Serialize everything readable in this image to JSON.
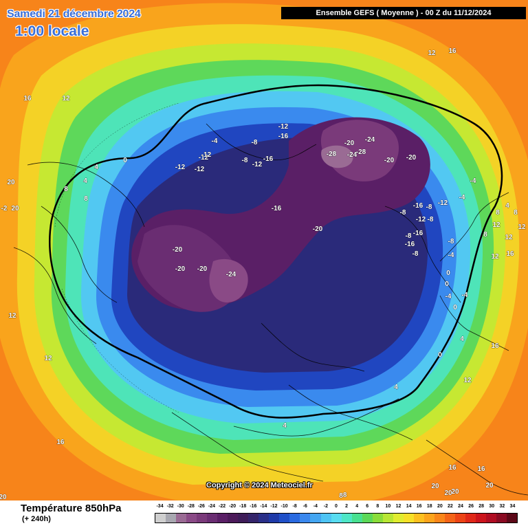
{
  "header": {
    "date_title": "Samedi 21 décembre 2024",
    "time_title": "1:00 locale",
    "run_banner": "Ensemble GEFS  ( Moyenne )  - 00 Z du 11/12/2024"
  },
  "footer": {
    "parameter": "Température 850hPa",
    "forecast_step": "(+ 240h)",
    "copyright": "Copyright © 2024 Meteociel.fr"
  },
  "legend": {
    "ticks": [
      "-34",
      "-32",
      "-30",
      "-28",
      "-26",
      "-24",
      "-22",
      "-20",
      "-18",
      "-16",
      "-14",
      "-12",
      "-10",
      "-8",
      "-6",
      "-4",
      "-2",
      "0",
      "2",
      "4",
      "6",
      "8",
      "10",
      "12",
      "14",
      "16",
      "18",
      "20",
      "22",
      "24",
      "26",
      "28",
      "30",
      "32",
      "34"
    ],
    "colors": [
      "#cfcfcf",
      "#a8a8b0",
      "#9a6b94",
      "#8a4a86",
      "#7a3a7a",
      "#6a2d72",
      "#5a1f66",
      "#4c1a5a",
      "#3e1c58",
      "#34246a",
      "#2a2f88",
      "#1f3aa8",
      "#2050c8",
      "#2a6ae0",
      "#3a88ee",
      "#44a6f2",
      "#4ec4f4",
      "#58dcf0",
      "#4ee6c6",
      "#48e090",
      "#5cd858",
      "#8adc3a",
      "#b8e634",
      "#e0ec30",
      "#f6e028",
      "#fcc020",
      "#fca41c",
      "#fa861a",
      "#f46418",
      "#ec4416",
      "#e02818",
      "#cc141c",
      "#b00c22",
      "#8a0a22",
      "#5c0818"
    ]
  },
  "map": {
    "colors": {
      "background": "#fa8a1c",
      "land_lines": "#000000",
      "zero_isotherm": "#000000"
    },
    "isotherm_labels": [
      "16",
      "12",
      "12",
      "16",
      "0",
      "4",
      "8",
      "20",
      "20",
      "4",
      "12",
      "8",
      "-4",
      "-8",
      "-12",
      "-12",
      "-8",
      "-12",
      "-12",
      "-16",
      "-12",
      "-16",
      "-20",
      "-24",
      "-28",
      "-24",
      "-28",
      "-20",
      "-20",
      "-20",
      "-16",
      "-20",
      "-20",
      "-20",
      "-24",
      "-16",
      "-8",
      "-12",
      "-8",
      "-16",
      "-12",
      "-8",
      "-8",
      "-8",
      "-4",
      "-4",
      "0",
      "0",
      "-4",
      "0",
      "4",
      "8",
      "12",
      "16",
      "12",
      "16",
      "4",
      "4",
      "-8",
      "0",
      "-4",
      "-4",
      "4",
      "8",
      "12",
      "12",
      "8",
      "12",
      "16",
      "20",
      "20",
      "20",
      "16",
      "16",
      "20",
      "8",
      "12",
      "20",
      "-2",
      "-12",
      "-8",
      "-16"
    ]
  }
}
